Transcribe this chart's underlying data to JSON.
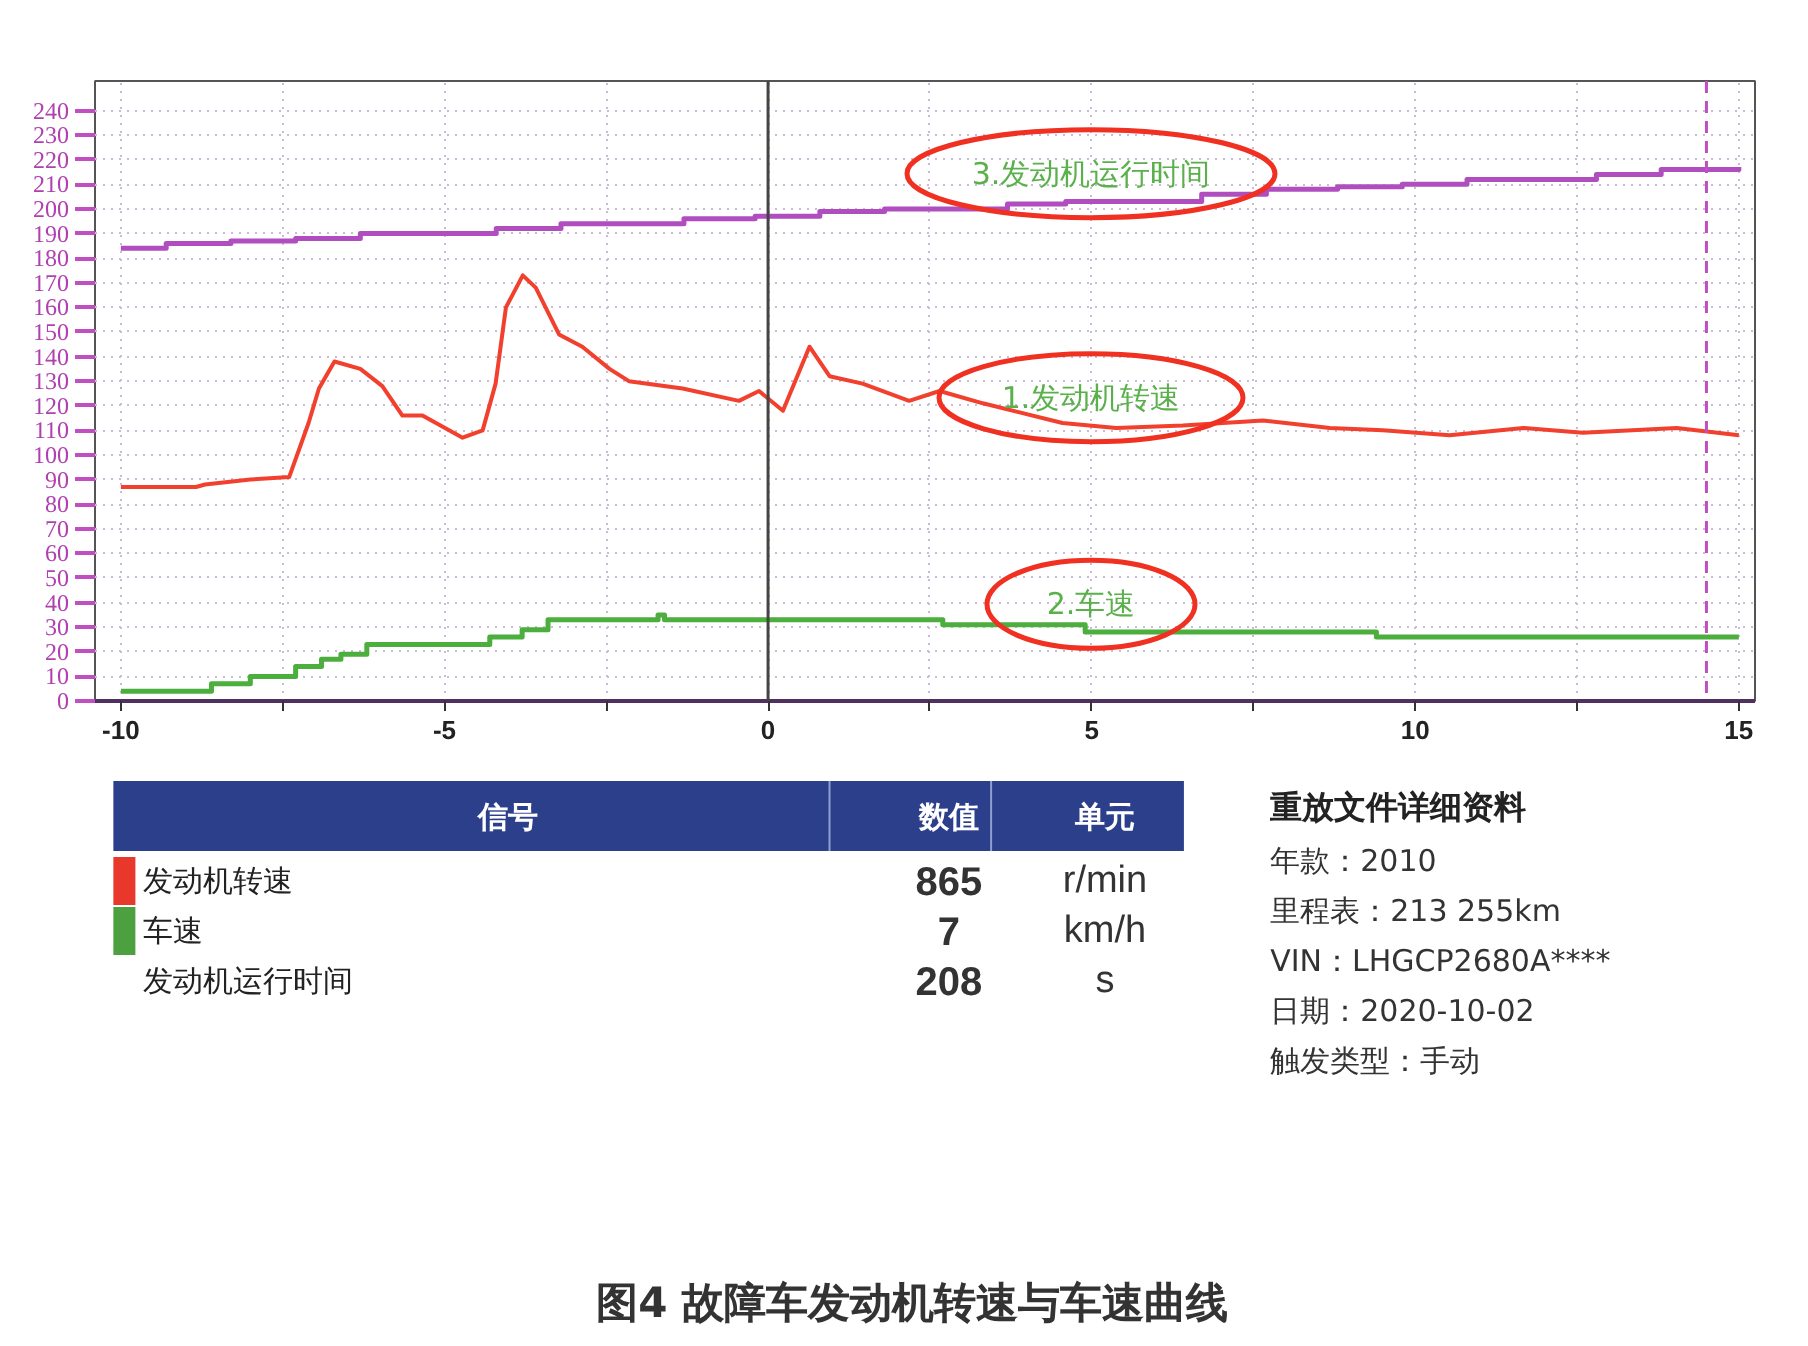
{
  "chart_data": [
    {
      "type": "line",
      "xlim": [
        -10.4,
        15.25
      ],
      "ylim": [
        0,
        252
      ],
      "xticks": [
        -10,
        {
          "value": -7.5,
          "label": null
        },
        -5,
        {
          "value": -2.5,
          "label": null
        },
        0,
        {
          "value": 2.5,
          "label": null
        },
        5,
        {
          "value": 7.5,
          "label": null
        },
        10,
        {
          "value": 12.5,
          "label": null
        },
        15
      ],
      "yticks": [
        0,
        10,
        20,
        30,
        40,
        50,
        60,
        70,
        80,
        90,
        100,
        110,
        120,
        130,
        140,
        150,
        160,
        170,
        180,
        190,
        200,
        210,
        220,
        230,
        240
      ],
      "grid": true,
      "series": [
        {
          "name": "3.发动机运行时间",
          "type": "step",
          "color": "#b04ec0",
          "x": [
            -10,
            -9.3,
            -8.3,
            -7.3,
            -6.3,
            -4.2,
            -3.2,
            -1.3,
            -0.2,
            0.8,
            1.8,
            3.7,
            4.6,
            6.7,
            7.7,
            8.8,
            9.8,
            10.8,
            12.8,
            13.8,
            15
          ],
          "values": [
            184,
            186,
            187,
            188,
            190,
            192,
            194,
            196,
            197,
            199,
            200,
            202,
            203,
            206,
            208,
            209,
            210,
            212,
            214,
            216,
            217
          ]
        },
        {
          "name": "1.发动机转速",
          "type": "line",
          "color": "#f2402e",
          "x": [
            -10,
            -8.84,
            -8.7,
            -8.0,
            -7.4,
            -7.1,
            -6.94,
            -6.7,
            -6.3,
            -5.96,
            -5.65,
            -5.34,
            -4.72,
            -4.41,
            -4.21,
            -4.05,
            -3.79,
            -3.59,
            -3.23,
            -2.87,
            -2.45,
            -2.15,
            -1.32,
            -0.45,
            -0.14,
            0.23,
            0.64,
            0.95,
            1.46,
            2.18,
            2.65,
            3.32,
            4.55,
            5.38,
            6.41,
            7.65,
            8.68,
            9.5,
            10.53,
            11.67,
            12.59,
            14.04,
            15
          ],
          "values": [
            87,
            87,
            88,
            90,
            91,
            113,
            127,
            138,
            135,
            128,
            116,
            116,
            107,
            110,
            129,
            160,
            173,
            168,
            149,
            144,
            135,
            130,
            127,
            122,
            126,
            118,
            144,
            132,
            129,
            122,
            126,
            121,
            113,
            111,
            112,
            114,
            111,
            110,
            108,
            111,
            109,
            111,
            108
          ]
        },
        {
          "name": "2.车速",
          "type": "step",
          "color": "#4cae3c",
          "x": [
            -10,
            -8.6,
            -8.0,
            -7.3,
            -6.9,
            -6.6,
            -6.2,
            -4.3,
            -3.8,
            -3.4,
            -1.7,
            -1.6,
            2.7,
            4.9,
            9.4,
            15
          ],
          "values": [
            4,
            7,
            10,
            14,
            17,
            19,
            23,
            26,
            29,
            33,
            35,
            33,
            31,
            28,
            26,
            26
          ]
        }
      ],
      "ref_lines": [
        {
          "axis": "x",
          "value": 0,
          "color": "#444444"
        },
        {
          "axis": "x",
          "value": 14.5,
          "color": "#c050c0",
          "line_style": "dashed"
        }
      ]
    },
    {
      "type": "other",
      "categories": [
        "发动机转速",
        "车速",
        "发动机运行时间"
      ],
      "values": [
        865,
        7,
        208
      ],
      "data_labels": true,
      "colors": [
        "#e8382c",
        "#4ca040",
        null
      ],
      "annotations": [
        "信号",
        "数值",
        "单元",
        "r/min",
        "km/h",
        "s",
        "重放文件详细资料",
        "年款：2010",
        "里程表：213 255km",
        "VIN：LHGCP2680A****",
        "日期：2020-10-02",
        "触发类型：手动",
        "图4 故障车发动机转速与车速曲线"
      ]
    }
  ]
}
